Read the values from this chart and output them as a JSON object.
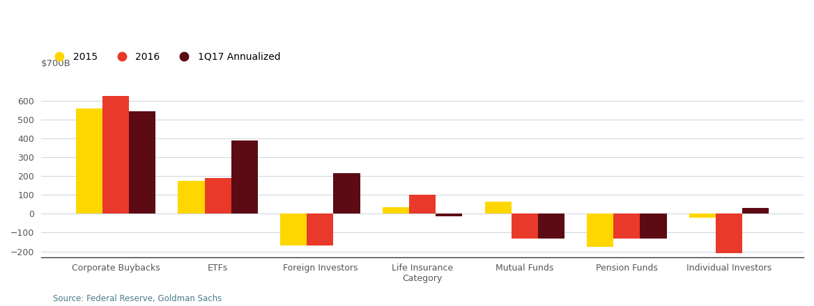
{
  "categories": [
    "Corporate Buybacks",
    "ETFs",
    "Foreign Investors",
    "Life Insurance\nCategory",
    "Mutual Funds",
    "Pension Funds",
    "Individual Investors"
  ],
  "series": {
    "2015": [
      560,
      175,
      -170,
      35,
      65,
      -175,
      -20
    ],
    "2016": [
      625,
      190,
      -170,
      100,
      -130,
      -130,
      -210
    ],
    "1Q17 Annualized": [
      545,
      390,
      215,
      -15,
      -130,
      -130,
      30
    ]
  },
  "colors": {
    "2015": "#FFD700",
    "2016": "#E8392A",
    "1Q17 Annualized": "#5C0A14"
  },
  "ylabel_text": "$700B",
  "yticks": [
    -200,
    -100,
    0,
    100,
    200,
    300,
    400,
    500,
    600
  ],
  "ylim": [
    -230,
    700
  ],
  "source_text": "Source: Federal Reserve, Goldman Sachs",
  "background_color": "#ffffff",
  "bar_width": 0.26,
  "grid_color": "#d0d8e0"
}
